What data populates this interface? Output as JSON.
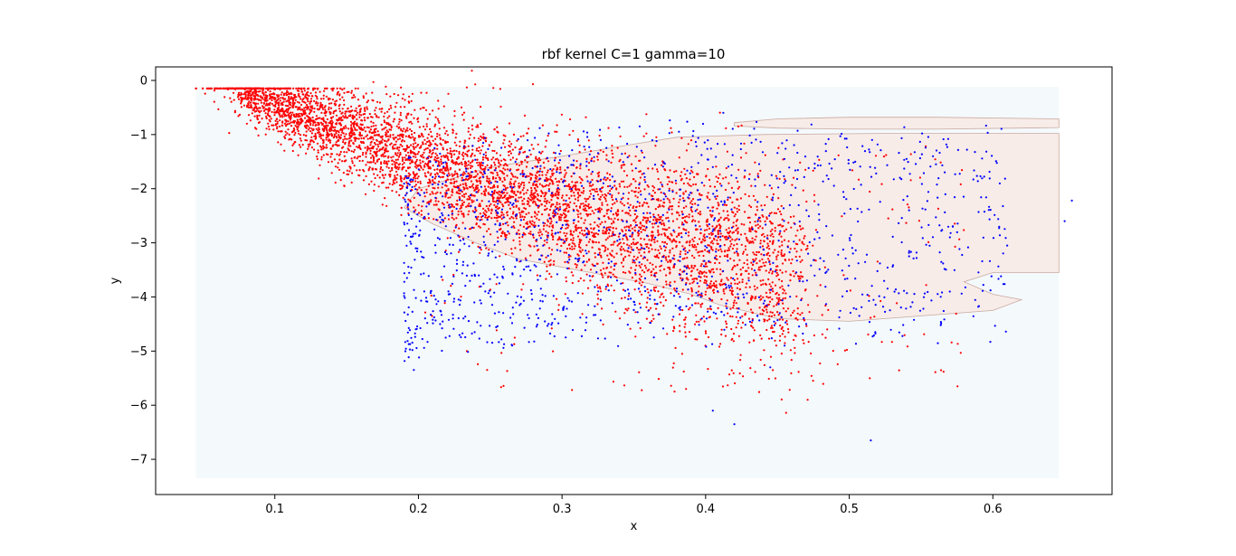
{
  "chart_data": {
    "type": "scatter",
    "title": "rbf kernel C=1 gamma=10",
    "xlabel": "x",
    "ylabel": "y",
    "xlim": [
      0.017,
      0.683
    ],
    "ylim": [
      -7.65,
      0.25
    ],
    "xticks": [
      0.1,
      0.2,
      0.3,
      0.4,
      0.5,
      0.6
    ],
    "xtick_labels": [
      "0.1",
      "0.2",
      "0.3",
      "0.4",
      "0.5",
      "0.6"
    ],
    "yticks": [
      0,
      -1,
      -2,
      -3,
      -4,
      -5,
      -6,
      -7
    ],
    "ytick_labels": [
      "0",
      "−1",
      "−2",
      "−3",
      "−4",
      "−5",
      "−6",
      "−7"
    ],
    "grid": false,
    "legend": "none",
    "background_region": {
      "x": [
        0.045,
        0.646
      ],
      "y": [
        -7.35,
        -0.12
      ],
      "color": "#f4f9fc"
    },
    "decision_regions": [
      {
        "color": "#f7ece8",
        "points": [
          [
            0.34,
            -1.22
          ],
          [
            0.38,
            -1.05
          ],
          [
            0.44,
            -1.0
          ],
          [
            0.52,
            -0.98
          ],
          [
            0.646,
            -0.98
          ],
          [
            0.646,
            -3.55
          ],
          [
            0.6,
            -3.55
          ],
          [
            0.58,
            -3.72
          ],
          [
            0.6,
            -3.95
          ],
          [
            0.62,
            -4.05
          ],
          [
            0.6,
            -4.25
          ],
          [
            0.55,
            -4.35
          ],
          [
            0.5,
            -4.45
          ],
          [
            0.45,
            -4.4
          ],
          [
            0.41,
            -4.15
          ],
          [
            0.39,
            -3.95
          ],
          [
            0.36,
            -3.75
          ],
          [
            0.31,
            -3.5
          ],
          [
            0.27,
            -3.3
          ],
          [
            0.24,
            -3.0
          ],
          [
            0.21,
            -2.65
          ],
          [
            0.19,
            -2.35
          ],
          [
            0.2,
            -2.0
          ],
          [
            0.25,
            -1.6
          ],
          [
            0.3,
            -1.4
          ]
        ]
      },
      {
        "color": "#f7ece8",
        "points": [
          [
            0.42,
            -0.78
          ],
          [
            0.45,
            -0.71
          ],
          [
            0.5,
            -0.68
          ],
          [
            0.56,
            -0.68
          ],
          [
            0.646,
            -0.71
          ],
          [
            0.646,
            -0.87
          ],
          [
            0.56,
            -0.9
          ],
          [
            0.5,
            -0.9
          ],
          [
            0.45,
            -0.88
          ],
          [
            0.42,
            -0.84
          ]
        ]
      }
    ],
    "series": [
      {
        "color": "#ff0000",
        "marker_size": 2.2
      },
      {
        "color": "#0000ff",
        "marker_size": 2.2
      }
    ]
  }
}
